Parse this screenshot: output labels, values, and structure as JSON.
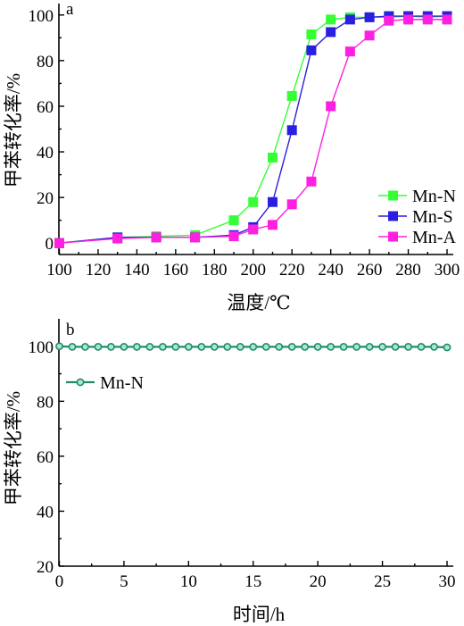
{
  "chart_data": [
    {
      "panel_label": "a",
      "type": "line",
      "xlabel": "温度/℃",
      "ylabel": "甲苯转化率/%",
      "xlim": [
        100,
        300
      ],
      "ylim": [
        -5,
        105
      ],
      "xticks": [
        100,
        120,
        140,
        160,
        180,
        200,
        220,
        240,
        260,
        280,
        300
      ],
      "yticks": [
        0,
        20,
        40,
        60,
        80,
        100
      ],
      "xtick_labels": [
        "100",
        "120",
        "140",
        "160",
        "180",
        "200",
        "220",
        "240",
        "260",
        "280",
        "300"
      ],
      "ytick_labels": [
        "0",
        "20",
        "40",
        "60",
        "80",
        "100"
      ],
      "grid": false,
      "legend_position": "lower-right",
      "series": [
        {
          "name": "Mn-N",
          "color": "#33ff33",
          "marker": "square",
          "x": [
            100,
            130,
            150,
            170,
            190,
            200,
            210,
            220,
            230,
            240,
            250,
            260,
            270,
            280,
            290,
            300
          ],
          "y": [
            0,
            2.5,
            3,
            3.5,
            10,
            18,
            37.5,
            64.5,
            91.5,
            98,
            99,
            99,
            99,
            99.5,
            99,
            99.5
          ]
        },
        {
          "name": "Mn-S",
          "color": "#2a1fe0",
          "marker": "square",
          "x": [
            100,
            130,
            150,
            170,
            190,
            200,
            210,
            220,
            230,
            240,
            250,
            260,
            270,
            280,
            290,
            300
          ],
          "y": [
            0,
            2.5,
            2.5,
            2.5,
            3.5,
            7,
            18,
            49.5,
            84.5,
            92.5,
            98,
            99,
            99.5,
            99.5,
            99.5,
            99.5
          ]
        },
        {
          "name": "Mn-A",
          "color": "#ff1fe0",
          "marker": "square",
          "x": [
            100,
            130,
            150,
            170,
            190,
            200,
            210,
            220,
            230,
            240,
            250,
            260,
            270,
            280,
            290,
            300
          ],
          "y": [
            0,
            2,
            2.5,
            2.5,
            3,
            6,
            8,
            17,
            27,
            60,
            84,
            91,
            97.5,
            98,
            98,
            98
          ]
        }
      ]
    },
    {
      "panel_label": "b",
      "type": "line",
      "xlabel": "时间/h",
      "ylabel": "甲苯转化率/%",
      "xlim": [
        0,
        30
      ],
      "ylim": [
        20,
        110
      ],
      "xticks": [
        0,
        5,
        10,
        15,
        20,
        25,
        30
      ],
      "yticks": [
        20,
        40,
        60,
        80,
        100
      ],
      "xtick_labels": [
        "0",
        "5",
        "10",
        "15",
        "20",
        "25",
        "30"
      ],
      "ytick_labels": [
        "20",
        "40",
        "60",
        "80",
        "100"
      ],
      "grid": false,
      "legend_position": "upper-left",
      "series": [
        {
          "name": "Mn-N",
          "color": "#1e8c6a",
          "marker": "circle",
          "x": [
            0,
            1,
            2,
            3,
            4,
            5,
            6,
            7,
            8,
            9,
            10,
            11,
            12,
            13,
            14,
            15,
            16,
            17,
            18,
            19,
            20,
            21,
            22,
            23,
            24,
            25,
            26,
            27,
            28,
            29,
            30
          ],
          "y": [
            100,
            99.8,
            99.8,
            99.8,
            99.8,
            99.8,
            99.8,
            99.8,
            99.8,
            99.8,
            99.8,
            99.8,
            99.8,
            99.8,
            99.8,
            99.8,
            99.8,
            99.8,
            99.8,
            99.8,
            99.8,
            99.8,
            99.8,
            99.8,
            99.8,
            99.8,
            99.8,
            99.8,
            99.8,
            99.8,
            99.6
          ]
        }
      ]
    }
  ]
}
